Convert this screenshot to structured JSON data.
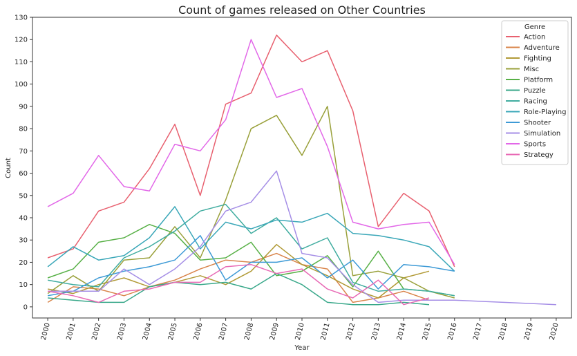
{
  "chart_data": {
    "type": "line",
    "title": "Count of games released on Other Countries",
    "xlabel": "Year",
    "ylabel": "Count",
    "xlim": [
      1999.4,
      2020.6
    ],
    "ylim": [
      -5,
      130
    ],
    "x_ticks": [
      2000,
      2001,
      2002,
      2003,
      2004,
      2005,
      2006,
      2007,
      2008,
      2009,
      2010,
      2011,
      2012,
      2013,
      2014,
      2015,
      2016,
      2017,
      2018,
      2019,
      2020
    ],
    "y_ticks": [
      0,
      10,
      20,
      30,
      40,
      50,
      60,
      70,
      80,
      90,
      100,
      110,
      120,
      130
    ],
    "grid": false,
    "legend": {
      "title": "Genre",
      "placement": "top-right"
    },
    "series": [
      {
        "name": "Action",
        "color": "#e8606f",
        "x": [
          2000,
          2001,
          2002,
          2003,
          2004,
          2005,
          2006,
          2007,
          2008,
          2009,
          2010,
          2011,
          2012,
          2013,
          2014,
          2015,
          2016
        ],
        "values": [
          22,
          26,
          43,
          47,
          62,
          82,
          50,
          91,
          96,
          122,
          110,
          115,
          88,
          36,
          51,
          43,
          18
        ]
      },
      {
        "name": "Adventure",
        "color": "#d9844a",
        "x": [
          2000,
          2001,
          2002,
          2003,
          2004,
          2005,
          2006,
          2007,
          2008,
          2009,
          2010,
          2011,
          2012,
          2013,
          2014,
          2015,
          2016
        ],
        "values": [
          2,
          9,
          8,
          5,
          9,
          12,
          17,
          21,
          20,
          24,
          19,
          17,
          2,
          4,
          7,
          3,
          3
        ]
      },
      {
        "name": "Fighting",
        "color": "#b19a36",
        "x": [
          2000,
          2001,
          2002,
          2003,
          2004,
          2005,
          2006,
          2007,
          2008,
          2009,
          2010,
          2011,
          2012,
          2013,
          2014,
          2015
        ],
        "values": [
          8,
          6,
          10,
          13,
          9,
          11,
          14,
          10,
          16,
          28,
          19,
          14,
          8,
          4,
          13,
          16
        ]
      },
      {
        "name": "Misc",
        "color": "#99a03a",
        "x": [
          2000,
          2001,
          2002,
          2003,
          2004,
          2005,
          2006,
          2007,
          2008,
          2009,
          2010,
          2011,
          2012,
          2013,
          2014,
          2015,
          2016
        ],
        "values": [
          6,
          14,
          7,
          21,
          22,
          36,
          22,
          48,
          80,
          86,
          68,
          90,
          14,
          16,
          13,
          7,
          4
        ]
      },
      {
        "name": "Platform",
        "color": "#57b046",
        "x": [
          2000,
          2001,
          2002,
          2003,
          2004,
          2005,
          2006,
          2007,
          2008,
          2009,
          2010,
          2011,
          2012,
          2013,
          2014,
          2015,
          2016
        ],
        "values": [
          13,
          17,
          29,
          31,
          37,
          33,
          21,
          22,
          29,
          14,
          16,
          23,
          9,
          25,
          8,
          7,
          5
        ]
      },
      {
        "name": "Puzzle",
        "color": "#39a88a",
        "x": [
          2000,
          2001,
          2002,
          2003,
          2004,
          2005,
          2006,
          2007,
          2008,
          2009,
          2010,
          2011,
          2012,
          2013,
          2014,
          2015
        ],
        "values": [
          4,
          3,
          2,
          2,
          9,
          11,
          10,
          11,
          8,
          15,
          10,
          2,
          1,
          1,
          2,
          1
        ]
      },
      {
        "name": "Racing",
        "color": "#3fac9f",
        "x": [
          2000,
          2001,
          2002,
          2003,
          2004,
          2005,
          2006,
          2007,
          2008,
          2009,
          2010,
          2011,
          2012,
          2013,
          2014,
          2015,
          2016
        ],
        "values": [
          12,
          10,
          9,
          22,
          27,
          34,
          43,
          46,
          33,
          40,
          26,
          31,
          11,
          7,
          8,
          7,
          5
        ]
      },
      {
        "name": "Role-Playing",
        "color": "#3aa7b8",
        "x": [
          2000,
          2001,
          2002,
          2003,
          2004,
          2005,
          2006,
          2007,
          2008,
          2009,
          2010,
          2011,
          2012,
          2013,
          2014,
          2015,
          2016
        ],
        "values": [
          18,
          27,
          21,
          23,
          31,
          45,
          26,
          38,
          35,
          39,
          38,
          42,
          33,
          32,
          30,
          27,
          16
        ]
      },
      {
        "name": "Shooter",
        "color": "#3d9ad6",
        "x": [
          2000,
          2001,
          2002,
          2003,
          2004,
          2005,
          2006,
          2007,
          2008,
          2009,
          2010,
          2011,
          2012,
          2013,
          2014,
          2015,
          2016
        ],
        "values": [
          5,
          7,
          13,
          16,
          18,
          21,
          32,
          12,
          20,
          20,
          22,
          13,
          21,
          8,
          19,
          18,
          16
        ]
      },
      {
        "name": "Simulation",
        "color": "#a58ee6",
        "x": [
          2000,
          2001,
          2002,
          2003,
          2004,
          2005,
          2006,
          2007,
          2008,
          2009,
          2010,
          2011,
          2012,
          2013,
          2014,
          2015,
          2016,
          2020
        ],
        "values": [
          7,
          7,
          7,
          17,
          10,
          17,
          27,
          43,
          47,
          61,
          24,
          22,
          10,
          2,
          3,
          3,
          3,
          1
        ]
      },
      {
        "name": "Sports",
        "color": "#e267e8",
        "x": [
          2000,
          2001,
          2002,
          2003,
          2004,
          2005,
          2006,
          2007,
          2008,
          2009,
          2010,
          2011,
          2012,
          2013,
          2014,
          2015,
          2016
        ],
        "values": [
          45,
          51,
          68,
          54,
          52,
          73,
          70,
          84,
          120,
          94,
          98,
          72,
          38,
          35,
          37,
          38,
          19
        ]
      },
      {
        "name": "Strategy",
        "color": "#e86ab5",
        "x": [
          2000,
          2001,
          2002,
          2003,
          2004,
          2005,
          2006,
          2007,
          2008,
          2009,
          2010,
          2011,
          2012,
          2013,
          2014,
          2015
        ],
        "values": [
          7,
          5,
          2,
          7,
          8,
          11,
          11,
          18,
          19,
          15,
          17,
          8,
          4,
          12,
          1,
          4
        ]
      }
    ]
  }
}
